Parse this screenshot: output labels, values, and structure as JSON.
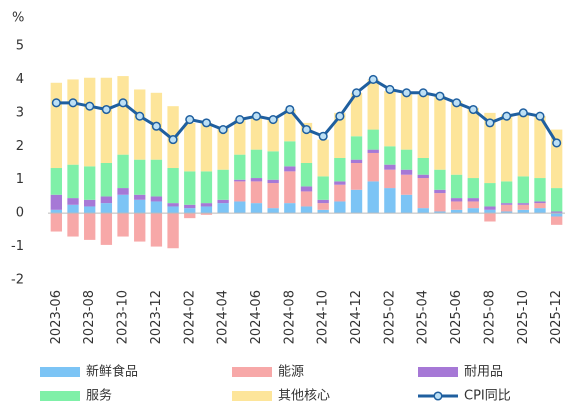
{
  "chart_data": {
    "type": "bar",
    "stacked": true,
    "y_label": "%",
    "categories": [
      "2023-06",
      null,
      "2023-08",
      null,
      "2023-10",
      null,
      "2023-12",
      null,
      "2024-02",
      null,
      "2024-04",
      null,
      "2024-06",
      null,
      "2024-08",
      null,
      "2024-10",
      null,
      "2024-12",
      null,
      "2025-02",
      null,
      "2025-04",
      null,
      "2025-06",
      null,
      "2025-08",
      null,
      "2025-10",
      null,
      "2025-12"
    ],
    "series": [
      {
        "name": "新鲜食品",
        "color": "#7cc4f5",
        "values": [
          0.1,
          0.25,
          0.2,
          0.3,
          0.55,
          0.4,
          0.35,
          0.2,
          0.15,
          0.2,
          0.3,
          0.35,
          0.3,
          0.15,
          0.3,
          0.2,
          0.1,
          0.35,
          0.7,
          0.95,
          0.75,
          0.55,
          0.15,
          0.05,
          0.1,
          0.15,
          0.1,
          0.05,
          0.1,
          0.15,
          -0.1
        ]
      },
      {
        "name": "能源",
        "color": "#f7a8a8",
        "values": [
          -0.55,
          -0.7,
          -0.8,
          -0.95,
          -0.7,
          -0.85,
          -1.0,
          -1.05,
          -0.15,
          -0.05,
          0,
          0.6,
          0.65,
          0.75,
          0.95,
          0.45,
          0.2,
          0.5,
          0.8,
          0.85,
          0.55,
          0.6,
          0.9,
          0.55,
          0.25,
          0.2,
          -0.25,
          0.2,
          0.15,
          0.15,
          -0.25
        ]
      },
      {
        "name": "耐用品",
        "color": "#a678d6",
        "values": [
          0.45,
          0.2,
          0.2,
          0.2,
          0.2,
          0.15,
          0.15,
          0.1,
          0.1,
          0.1,
          0.1,
          0.05,
          0.1,
          0.1,
          0.15,
          0.15,
          0.1,
          0.1,
          0.1,
          0.1,
          0.15,
          0.15,
          0.1,
          0.1,
          0.1,
          0.1,
          0.1,
          0.05,
          0.05,
          0.05,
          0.05
        ]
      },
      {
        "name": "服务",
        "color": "#7ff0a8",
        "values": [
          0.8,
          1.0,
          1.0,
          1.0,
          1.0,
          1.05,
          1.1,
          1.05,
          1.0,
          0.95,
          0.9,
          0.75,
          0.85,
          0.85,
          0.75,
          0.7,
          0.7,
          0.7,
          0.7,
          0.6,
          0.55,
          0.6,
          0.5,
          0.6,
          0.7,
          0.6,
          0.7,
          0.65,
          0.8,
          0.7,
          0.7
        ]
      },
      {
        "name": "其他核心",
        "color": "#fde59a",
        "values": [
          2.55,
          2.55,
          2.65,
          2.55,
          2.35,
          2.1,
          2.0,
          1.85,
          1.45,
          1.45,
          1.3,
          1.05,
          0.95,
          1.0,
          0.95,
          1.2,
          1.1,
          1.35,
          1.3,
          1.5,
          1.65,
          1.7,
          1.9,
          2.2,
          2.2,
          2.1,
          2.1,
          2.0,
          1.9,
          1.85,
          1.75
        ]
      },
      {
        "name": "CPI同比",
        "type": "line",
        "color": "#1f5f9f",
        "marker_color": "#bde0f5",
        "values": [
          3.3,
          3.3,
          3.2,
          3.1,
          3.3,
          2.9,
          2.6,
          2.2,
          2.8,
          2.7,
          2.5,
          2.8,
          2.9,
          2.8,
          3.1,
          2.5,
          2.3,
          2.9,
          3.6,
          4.0,
          3.7,
          3.6,
          3.6,
          3.5,
          3.3,
          3.1,
          2.7,
          2.9,
          3.0,
          2.9,
          2.1
        ]
      }
    ],
    "ylim": [
      -2,
      5
    ],
    "yticks": [
      -2,
      -1,
      0,
      1,
      2,
      3,
      4,
      5
    ],
    "grid": false
  }
}
